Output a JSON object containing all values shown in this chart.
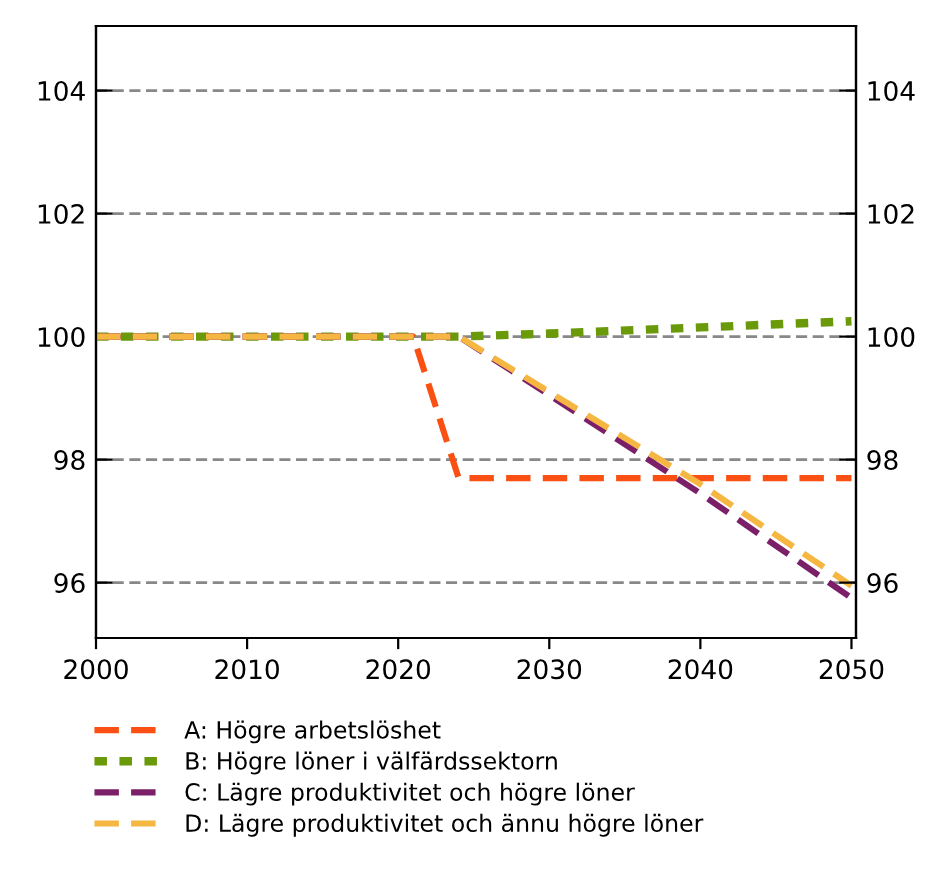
{
  "chart_data": {
    "type": "line",
    "x": [
      2000,
      2021,
      2024,
      2030,
      2040,
      2050
    ],
    "series": [
      {
        "name": "A: Högre arbetslöshet",
        "color": "#fa5014",
        "values": [
          100,
          100,
          97.7,
          97.7,
          97.7,
          97.7
        ],
        "line_style": "dashed"
      },
      {
        "name": "B: Högre löner i välfärdssektorn",
        "color": "#6a9a0a",
        "values": [
          100,
          100,
          100,
          100.05,
          100.15,
          100.25
        ],
        "line_style": "dotted"
      },
      {
        "name": "C: Lägre produktivitet och högre löner",
        "color": "#7b2068",
        "values": [
          100,
          100,
          100,
          99.05,
          97.45,
          95.75
        ],
        "line_style": "dashed"
      },
      {
        "name": "D: Lägre produktivitet och ännu högre löner",
        "color": "#f5b642",
        "values": [
          100,
          100,
          100,
          99.1,
          97.6,
          95.95
        ],
        "line_style": "dashed"
      }
    ],
    "xlim": [
      2000,
      2050.3
    ],
    "xticks": [
      2000,
      2010,
      2020,
      2030,
      2040,
      2050
    ],
    "ylim": [
      95.1,
      105.05
    ],
    "yticks": [
      96,
      98,
      100,
      102,
      104
    ],
    "y2lim": [
      95.1,
      105.05
    ],
    "y2ticks": [
      96,
      98,
      100,
      102,
      104
    ],
    "grid": "y",
    "legend": "bottom",
    "marker": "none"
  }
}
